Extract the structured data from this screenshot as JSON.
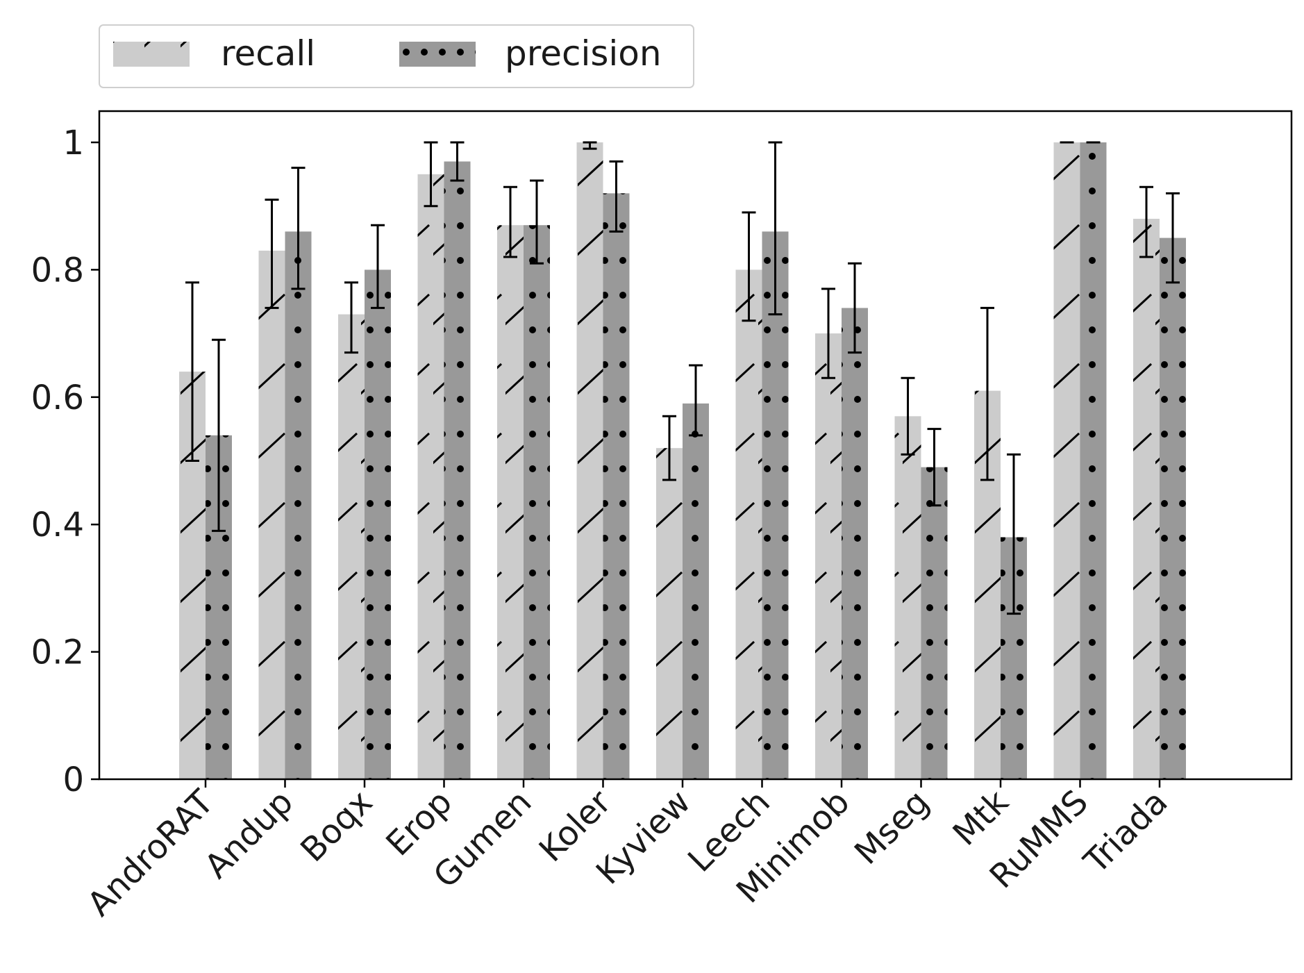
{
  "chart_data": {
    "type": "bar",
    "categories": [
      "AndroRAT",
      "Andup",
      "Boqx",
      "Erop",
      "Gumen",
      "Koler",
      "Kyview",
      "Leech",
      "Minimob",
      "Mseg",
      "Mtk",
      "RuMMS",
      "Triada"
    ],
    "series": [
      {
        "name": "recall",
        "color": "#cccccc",
        "pattern": "diagonal-hatch",
        "values": [
          0.64,
          0.83,
          0.73,
          0.95,
          0.87,
          1.0,
          0.52,
          0.8,
          0.7,
          0.57,
          0.61,
          1.0,
          0.88
        ],
        "err_low": [
          0.5,
          0.74,
          0.67,
          0.9,
          0.82,
          0.99,
          0.47,
          0.72,
          0.63,
          0.51,
          0.47,
          1.0,
          0.82
        ],
        "err_high": [
          0.78,
          0.91,
          0.78,
          1.0,
          0.93,
          1.0,
          0.57,
          0.89,
          0.77,
          0.63,
          0.74,
          1.0,
          0.93
        ]
      },
      {
        "name": "precision",
        "color": "#999999",
        "pattern": "dots",
        "values": [
          0.54,
          0.86,
          0.8,
          0.97,
          0.87,
          0.92,
          0.59,
          0.86,
          0.74,
          0.49,
          0.38,
          1.0,
          0.85
        ],
        "err_low": [
          0.39,
          0.77,
          0.74,
          0.94,
          0.81,
          0.86,
          0.54,
          0.73,
          0.67,
          0.43,
          0.26,
          1.0,
          0.78
        ],
        "err_high": [
          0.69,
          0.96,
          0.87,
          1.0,
          0.94,
          0.97,
          0.65,
          1.0,
          0.81,
          0.55,
          0.51,
          1.0,
          0.92
        ]
      }
    ],
    "yticks": [
      0,
      0.2,
      0.4,
      0.6,
      0.8,
      1
    ],
    "ytick_labels": [
      "0",
      "0.2",
      "0.4",
      "0.6",
      "0.8",
      "1"
    ],
    "ylim": [
      0,
      1.05
    ],
    "title": "",
    "xlabel": "",
    "ylabel": "",
    "legend": {
      "entries": [
        "recall",
        "precision"
      ],
      "placement": "top-left, above plot"
    }
  }
}
